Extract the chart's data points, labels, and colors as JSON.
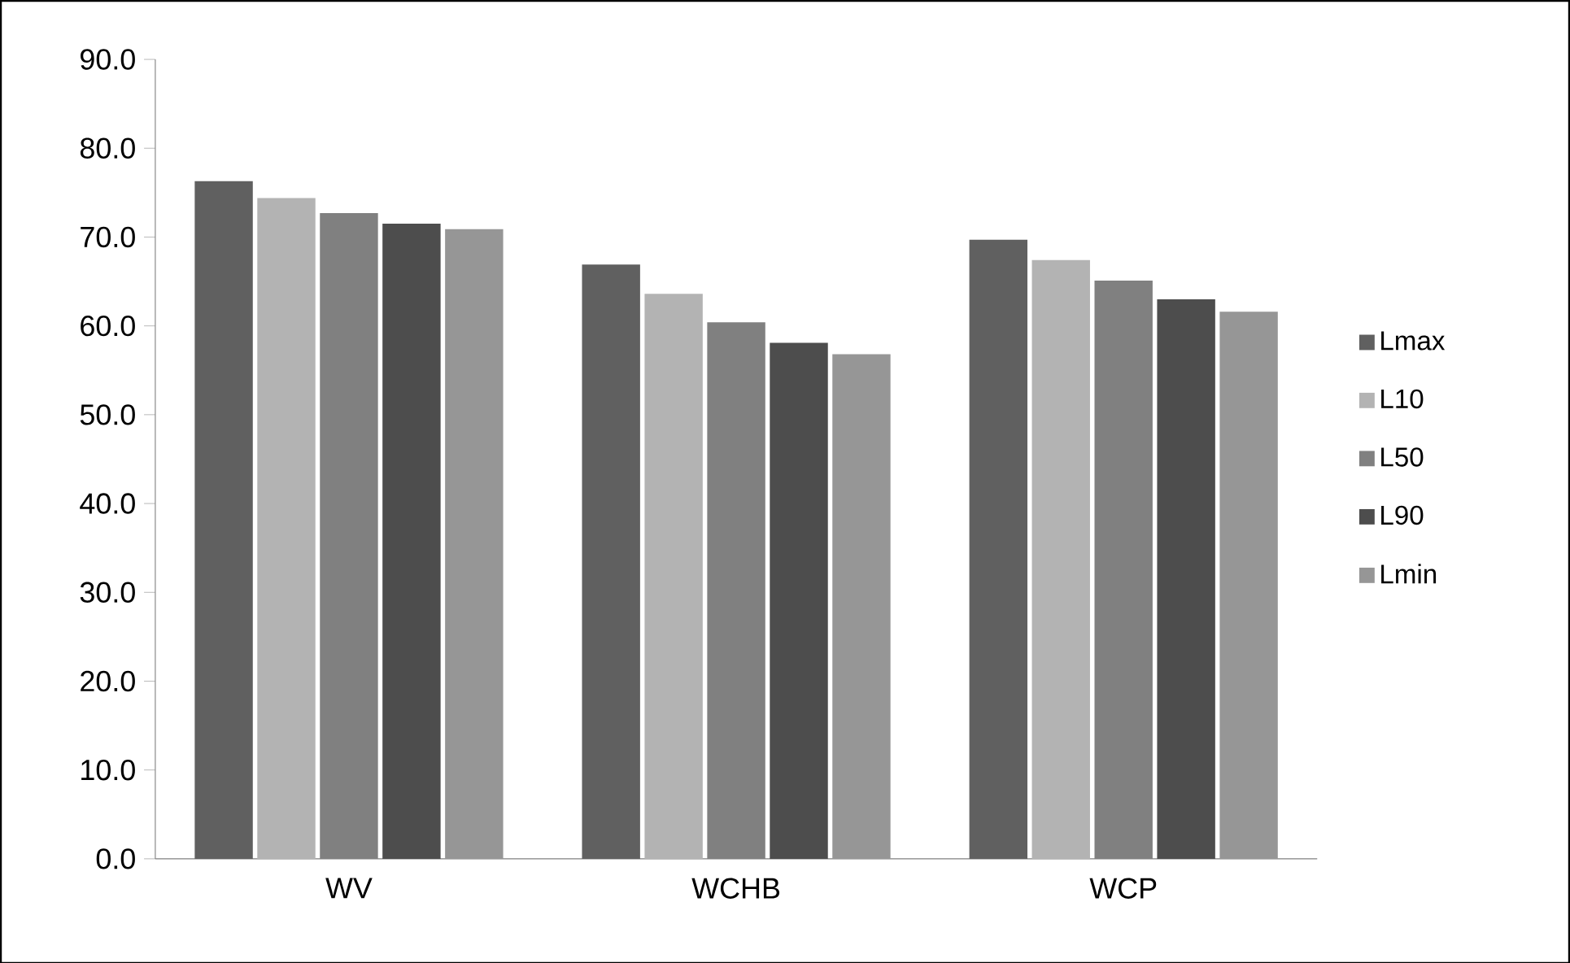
{
  "chart_data": {
    "type": "bar",
    "categories": [
      "WV",
      "WCHB",
      "WCP"
    ],
    "series": [
      {
        "name": "Lmax",
        "color": "#606060",
        "values": [
          76.3,
          66.9,
          69.7
        ]
      },
      {
        "name": "L10",
        "color": "#b3b3b3",
        "values": [
          74.4,
          63.6,
          67.4
        ]
      },
      {
        "name": "L50",
        "color": "#808080",
        "values": [
          72.7,
          60.4,
          65.1
        ]
      },
      {
        "name": "L90",
        "color": "#4d4d4d",
        "values": [
          71.5,
          58.1,
          63.0
        ]
      },
      {
        "name": "Lmin",
        "color": "#969696",
        "values": [
          70.9,
          56.8,
          61.6
        ]
      }
    ],
    "ylim": [
      0,
      90
    ],
    "yticks": [
      {
        "value": 0,
        "label": "0.0"
      },
      {
        "value": 10,
        "label": "10.0"
      },
      {
        "value": 20,
        "label": "20.0"
      },
      {
        "value": 30,
        "label": "30.0"
      },
      {
        "value": 40,
        "label": "40.0"
      },
      {
        "value": 50,
        "label": "50.0"
      },
      {
        "value": 60,
        "label": "60.0"
      },
      {
        "value": 70,
        "label": "70.0"
      },
      {
        "value": 80,
        "label": "80.0"
      },
      {
        "value": 90,
        "label": "90.0"
      }
    ],
    "grid": false,
    "legend": "right"
  }
}
